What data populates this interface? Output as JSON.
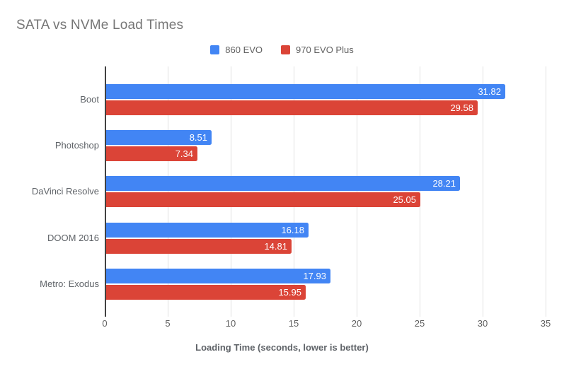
{
  "title": "SATA vs NVMe Load Times",
  "legend": {
    "items": [
      {
        "label": "860 EVO",
        "color": "#4285F4"
      },
      {
        "label": "970 EVO Plus",
        "color": "#DB4437"
      }
    ]
  },
  "chart_data": {
    "type": "bar",
    "orientation": "horizontal",
    "title": "SATA vs NVMe Load Times",
    "categories": [
      "Boot",
      "Photoshop",
      "DaVinci Resolve",
      "DOOM 2016",
      "Metro: Exodus"
    ],
    "series": [
      {
        "name": "860 EVO",
        "color": "#4285F4",
        "values": [
          31.82,
          8.51,
          28.21,
          16.18,
          17.93
        ]
      },
      {
        "name": "970 EVO Plus",
        "color": "#DB4437",
        "values": [
          29.58,
          7.34,
          25.05,
          14.81,
          15.95
        ]
      }
    ],
    "value_labels": true,
    "xlabel": "Loading Time (seconds, lower is better)",
    "ylabel": "",
    "xlim": [
      0,
      35
    ],
    "xticks": [
      0,
      5,
      10,
      15,
      20,
      25,
      30,
      35
    ],
    "grid": true,
    "legend_position": "top"
  },
  "colors": {
    "series_blue": "#4285F4",
    "series_red": "#DB4437",
    "title_text": "#757575",
    "axis_label_text": "#5f6368",
    "tick_text": "#616161",
    "gridline": "#e0e0e0",
    "axis_line": "#424242",
    "background": "#ffffff",
    "bar_value_text": "#ffffff"
  }
}
